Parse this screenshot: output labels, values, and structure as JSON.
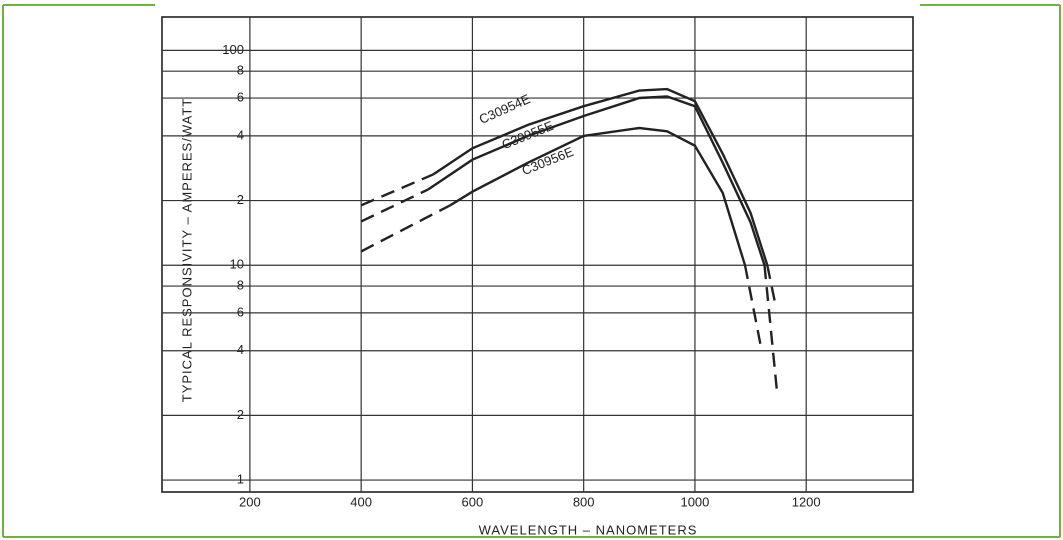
{
  "chart_data": {
    "type": "line",
    "y_label": "TYPICAL RESPONSIVITY – AMPERES/WATT",
    "x_label": "WAVELENGTH – NANOMETERS",
    "xlim": [
      42,
      1392
    ],
    "xticks": [
      200,
      400,
      600,
      800,
      1000,
      1200
    ],
    "ylim": [
      0.88,
      143
    ],
    "log_y": true,
    "grid": true,
    "yticks": [
      1,
      2,
      4,
      6,
      8,
      10,
      {
        "value": 20,
        "label": "2"
      },
      {
        "value": 40,
        "label": "4"
      },
      {
        "value": 60,
        "label": "6"
      },
      {
        "value": 80,
        "label": "8"
      },
      100
    ],
    "series": [
      {
        "name": "C30954E",
        "color": "#222222",
        "segments": [
          {
            "style": "dashed",
            "x": [
              400,
              530
            ],
            "values": [
              19,
              26.5
            ]
          },
          {
            "style": "solid",
            "x": [
              530,
              600,
              700,
              800,
              900,
              950,
              1000,
              1050,
              1100,
              1130
            ],
            "values": [
              26.5,
              35,
              45,
              55,
              65,
              66,
              58,
              33,
              17.5,
              10
            ]
          },
          {
            "style": "dashed",
            "x": [
              1130,
              1145
            ],
            "values": [
              10,
              6.5
            ]
          }
        ]
      },
      {
        "name": "C30955E",
        "color": "#222222",
        "segments": [
          {
            "style": "dashed",
            "x": [
              400,
              520
            ],
            "values": [
              16,
              22.5
            ]
          },
          {
            "style": "solid",
            "x": [
              520,
              600,
              700,
              800,
              900,
              950,
              1000,
              1050,
              1100,
              1125
            ],
            "values": [
              22.5,
              31,
              40,
              49.5,
              60,
              61,
              55,
              30,
              15.8,
              10
            ]
          },
          {
            "style": "dashed",
            "x": [
              1125,
              1148
            ],
            "values": [
              10,
              2.5
            ]
          }
        ]
      },
      {
        "name": "C30956E",
        "color": "#222222",
        "segments": [
          {
            "style": "dashed",
            "x": [
              400,
              560
            ],
            "values": [
              11.6,
              19
            ]
          },
          {
            "style": "solid",
            "x": [
              560,
              600,
              700,
              800,
              900,
              950,
              1000,
              1050,
              1090
            ],
            "values": [
              19,
              22,
              30,
              40,
              43.5,
              42,
              36,
              21.7,
              10
            ]
          },
          {
            "style": "dashed",
            "x": [
              1090,
              1120
            ],
            "values": [
              10,
              4
            ]
          }
        ]
      }
    ]
  }
}
